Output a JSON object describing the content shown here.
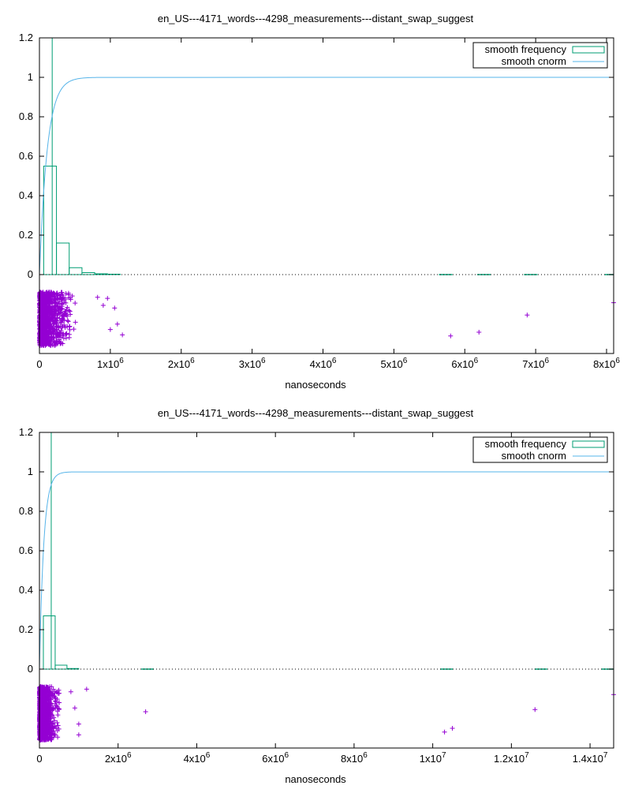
{
  "colors": {
    "frequency": "#009e73",
    "cnorm": "#56b4e9",
    "scatter": "#9400d3"
  },
  "chart_data": [
    {
      "type": "line",
      "title": "en_US---4171_words---4298_measurements---distant_swap_suggest",
      "xlabel": "nanoseconds",
      "xlim": [
        0,
        8100000
      ],
      "ylim": [
        0,
        1.2
      ],
      "y_ticks": [
        "0",
        "0.2",
        "0.4",
        "0.6",
        "0.8",
        "1",
        "1.2"
      ],
      "x_ticks": [
        {
          "value": 0,
          "mant": "0",
          "exp": ""
        },
        {
          "value": 1000000,
          "mant": "1x10",
          "exp": "6"
        },
        {
          "value": 2000000,
          "mant": "2x10",
          "exp": "6"
        },
        {
          "value": 3000000,
          "mant": "3x10",
          "exp": "6"
        },
        {
          "value": 4000000,
          "mant": "4x10",
          "exp": "6"
        },
        {
          "value": 5000000,
          "mant": "5x10",
          "exp": "6"
        },
        {
          "value": 6000000,
          "mant": "6x10",
          "exp": "6"
        },
        {
          "value": 7000000,
          "mant": "7x10",
          "exp": "6"
        },
        {
          "value": 8000000,
          "mant": "8x10",
          "exp": "6"
        }
      ],
      "legend": [
        "smooth frequency",
        "smooth cnorm"
      ],
      "legend_position": "top-right",
      "bin_width": 180000,
      "frequency_bins": [
        {
          "x": 0,
          "y": 1.25
        },
        {
          "x": 60000,
          "y": 0.55
        },
        {
          "x": 240000,
          "y": 0.16
        },
        {
          "x": 420000,
          "y": 0.035
        },
        {
          "x": 600000,
          "y": 0.01
        },
        {
          "x": 780000,
          "y": 0.004
        },
        {
          "x": 960000,
          "y": 0.002
        },
        {
          "x": 5640000,
          "y": 0.001
        },
        {
          "x": 6180000,
          "y": 0.001
        },
        {
          "x": 6840000,
          "y": 0.001
        },
        {
          "x": 7980000,
          "y": 0.001
        }
      ],
      "cnorm_scale": 110000,
      "outliers": [
        {
          "x": 820000,
          "y": 0.9
        },
        {
          "x": 900000,
          "y": 0.75
        },
        {
          "x": 960000,
          "y": 0.88
        },
        {
          "x": 1060000,
          "y": 0.7
        },
        {
          "x": 1170000,
          "y": 0.2
        },
        {
          "x": 1000000,
          "y": 0.3
        },
        {
          "x": 1100000,
          "y": 0.4
        },
        {
          "x": 5800000,
          "y": 0.18
        },
        {
          "x": 6200000,
          "y": 0.25
        },
        {
          "x": 6880000,
          "y": 0.57
        },
        {
          "x": 8100000,
          "y": 0.8
        }
      ]
    },
    {
      "type": "line",
      "title": "en_US---4171_words---4298_measurements---distant_swap_suggest",
      "xlabel": "nanoseconds",
      "xlim": [
        0,
        14600000
      ],
      "ylim": [
        0,
        1.2
      ],
      "y_ticks": [
        "0",
        "0.2",
        "0.4",
        "0.6",
        "0.8",
        "1",
        "1.2"
      ],
      "x_ticks": [
        {
          "value": 0,
          "mant": "0",
          "exp": ""
        },
        {
          "value": 2000000,
          "mant": "2x10",
          "exp": "6"
        },
        {
          "value": 4000000,
          "mant": "4x10",
          "exp": "6"
        },
        {
          "value": 6000000,
          "mant": "6x10",
          "exp": "6"
        },
        {
          "value": 8000000,
          "mant": "8x10",
          "exp": "6"
        },
        {
          "value": 10000000,
          "mant": "1x10",
          "exp": "7"
        },
        {
          "value": 12000000,
          "mant": "1.2x10",
          "exp": "7"
        },
        {
          "value": 14000000,
          "mant": "1.4x10",
          "exp": "7"
        }
      ],
      "legend": [
        "smooth frequency",
        "smooth cnorm"
      ],
      "legend_position": "top-right",
      "bin_width": 300000,
      "frequency_bins": [
        {
          "x": 0,
          "y": 1.25
        },
        {
          "x": 100000,
          "y": 0.27
        },
        {
          "x": 400000,
          "y": 0.02
        },
        {
          "x": 700000,
          "y": 0.003
        },
        {
          "x": 2600000,
          "y": 0.001
        },
        {
          "x": 10200000,
          "y": 0.001
        },
        {
          "x": 12600000,
          "y": 0.001
        },
        {
          "x": 14300000,
          "y": 0.001
        }
      ],
      "cnorm_scale": 110000,
      "outliers": [
        {
          "x": 800000,
          "y": 0.9
        },
        {
          "x": 900000,
          "y": 0.6
        },
        {
          "x": 1000000,
          "y": 0.3
        },
        {
          "x": 1200000,
          "y": 0.95
        },
        {
          "x": 1000000,
          "y": 0.1
        },
        {
          "x": 2700000,
          "y": 0.53
        },
        {
          "x": 10300000,
          "y": 0.15
        },
        {
          "x": 10500000,
          "y": 0.22
        },
        {
          "x": 12600000,
          "y": 0.57
        },
        {
          "x": 14600000,
          "y": 0.85
        }
      ]
    }
  ]
}
